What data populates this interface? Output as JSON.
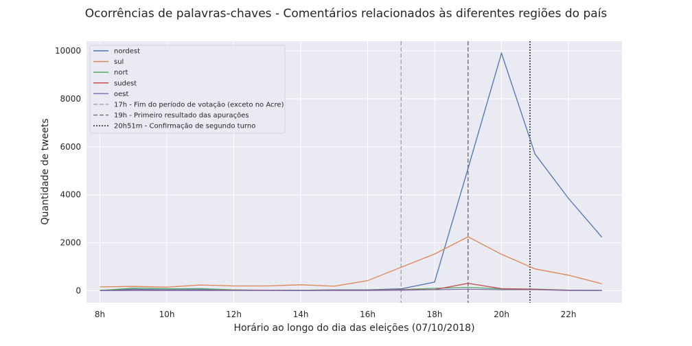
{
  "chart_data": {
    "type": "line",
    "title": "Ocorrências de palavras-chaves - Comentários relacionados às diferentes regiões do país",
    "xlabel": "Horário ao longo do dia das eleições (07/10/2018)",
    "ylabel": "Quantidade de tweets",
    "x": [
      8,
      9,
      10,
      11,
      12,
      13,
      14,
      15,
      16,
      17,
      18,
      19,
      20,
      21,
      22,
      23
    ],
    "xticks": [
      8,
      10,
      12,
      14,
      16,
      18,
      20,
      22
    ],
    "xtick_labels": [
      "8h",
      "10h",
      "12h",
      "14h",
      "16h",
      "18h",
      "20h",
      "22h"
    ],
    "xlim": [
      7.6,
      23.6
    ],
    "ylim": [
      -500,
      10400
    ],
    "yticks": [
      0,
      2000,
      4000,
      6000,
      8000,
      10000
    ],
    "ytick_labels": [
      "0",
      "2000",
      "4000",
      "6000",
      "8000",
      "10000"
    ],
    "grid": true,
    "legend_position": "top-left",
    "series": [
      {
        "name": "nordest",
        "color": "#4c72b0",
        "values": [
          20,
          60,
          40,
          50,
          30,
          20,
          20,
          40,
          40,
          80,
          360,
          5100,
          9900,
          5700,
          3850,
          2230
        ]
      },
      {
        "name": "sul",
        "color": "#dd8452",
        "values": [
          160,
          180,
          150,
          240,
          200,
          200,
          250,
          190,
          420,
          980,
          1530,
          2250,
          1520,
          910,
          650,
          290
        ]
      },
      {
        "name": "nort",
        "color": "#55a868",
        "values": [
          10,
          110,
          80,
          90,
          40,
          20,
          20,
          30,
          30,
          50,
          100,
          140,
          80,
          70,
          30,
          20
        ]
      },
      {
        "name": "sudest",
        "color": "#c44e52",
        "values": [
          10,
          20,
          20,
          20,
          20,
          20,
          10,
          20,
          20,
          40,
          50,
          310,
          90,
          60,
          20,
          10
        ]
      },
      {
        "name": "oest",
        "color": "#8172b3",
        "values": [
          5,
          10,
          10,
          10,
          10,
          10,
          5,
          10,
          10,
          20,
          40,
          60,
          40,
          40,
          10,
          10
        ]
      }
    ],
    "vlines": [
      {
        "x": 17,
        "label": "17h - Fim do período de votação (exceto no Acre)",
        "color": "#aaaaaa",
        "dash": "6,3"
      },
      {
        "x": 19,
        "label": "19h - Primeiro resultado das apurações",
        "color": "#777777",
        "dash": "6,3"
      },
      {
        "x": 20.85,
        "label": "20h51m - Confirmação de segundo turno",
        "color": "#222222",
        "dash": "2,2"
      }
    ]
  }
}
